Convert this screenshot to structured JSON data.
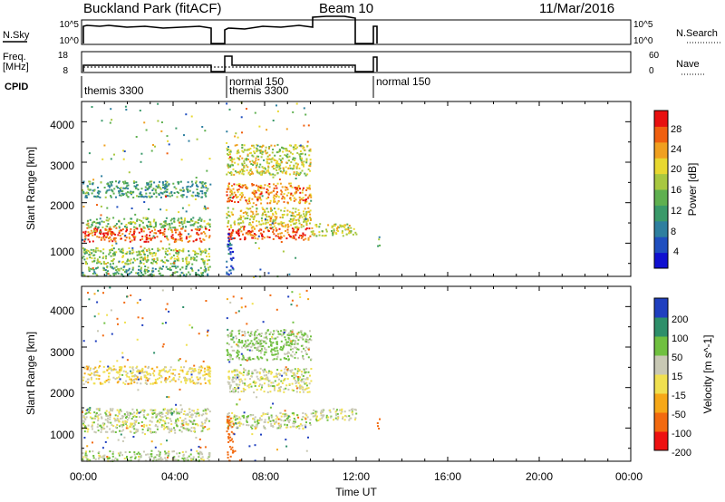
{
  "header": {
    "station": "Buckland Park (fitACF)",
    "beam": "Beam 10",
    "date": "11/Mar/2016"
  },
  "top_panels": {
    "nsky_label": "N.Sky",
    "nsky_ticks": [
      "10^5",
      "10^0"
    ],
    "nsearch_label": "N.Search",
    "nsearch_ticks": [
      "10^5",
      "10^0"
    ],
    "freq_label": "Freq.",
    "freq_unit": "[MHz]",
    "freq_ticks": [
      "18",
      "8"
    ],
    "nave_label": "Nave",
    "nave_ticks": [
      "60",
      "0"
    ],
    "cpid_label": "CPID",
    "cpid_segments": [
      {
        "label": "themis 3300",
        "start_h": 0.0
      },
      {
        "label": "normal 150",
        "start_h": 6.4
      },
      {
        "label": "themis 3300",
        "start_h": 6.4
      },
      {
        "label": "normal 150",
        "start_h": 12.9
      }
    ]
  },
  "chart_data": [
    {
      "type": "heatmap",
      "quantity": "Power",
      "xlabel": "",
      "ylabel": "Slant Range [km]",
      "xlim": [
        0,
        24
      ],
      "ylim": [
        180,
        4500
      ],
      "yticks": [
        "1000",
        "2000",
        "3000",
        "4000"
      ],
      "colorbar": {
        "label": "Power [dB]",
        "ticks": [
          "4",
          "8",
          "12",
          "16",
          "20",
          "24",
          "28"
        ],
        "range": [
          0,
          30
        ]
      },
      "bands": [
        {
          "t0": 0.0,
          "t1": 5.6,
          "r0": 1050,
          "r1": 1400,
          "level": 26
        },
        {
          "t0": 0.0,
          "t1": 5.6,
          "r0": 1400,
          "r1": 1650,
          "level": 14
        },
        {
          "t0": 0.0,
          "t1": 5.6,
          "r0": 2150,
          "r1": 2550,
          "level": 11
        },
        {
          "t0": 0.0,
          "t1": 5.6,
          "r0": 200,
          "r1": 450,
          "level": 12
        },
        {
          "t0": 0.0,
          "t1": 5.6,
          "r0": 500,
          "r1": 900,
          "level": 16
        },
        {
          "t0": 6.3,
          "t1": 10.0,
          "r0": 1100,
          "r1": 1400,
          "level": 27
        },
        {
          "t0": 6.3,
          "t1": 10.0,
          "r0": 1400,
          "r1": 1900,
          "level": 19
        },
        {
          "t0": 6.3,
          "t1": 10.0,
          "r0": 2000,
          "r1": 2500,
          "level": 23
        },
        {
          "t0": 6.3,
          "t1": 10.0,
          "r0": 2700,
          "r1": 3450,
          "level": 18
        },
        {
          "t0": 6.3,
          "t1": 6.6,
          "r0": 200,
          "r1": 1300,
          "level": 5
        },
        {
          "t0": 10.0,
          "t1": 12.0,
          "r0": 1200,
          "r1": 1500,
          "level": 18
        },
        {
          "t0": 12.9,
          "t1": 13.0,
          "r0": 900,
          "r1": 1250,
          "level": 11
        }
      ]
    },
    {
      "type": "heatmap",
      "quantity": "Velocity",
      "xlabel": "Time UT",
      "ylabel": "Slant Range [km]",
      "xlim": [
        0,
        24
      ],
      "ylim": [
        180,
        4500
      ],
      "xticks": [
        "00:00",
        "04:00",
        "08:00",
        "12:00",
        "16:00",
        "20:00",
        "00:00"
      ],
      "yticks": [
        "1000",
        "2000",
        "3000",
        "4000"
      ],
      "colorbar": {
        "label": "Velocity [m s^-1]",
        "ticks": [
          "200",
          "100",
          "50",
          "15",
          "-15",
          "-50",
          "-100",
          "-200"
        ]
      },
      "bands": [
        {
          "t0": 0.0,
          "t1": 5.6,
          "r0": 900,
          "r1": 1500,
          "level": 0
        },
        {
          "t0": 0.0,
          "t1": 5.6,
          "r0": 2100,
          "r1": 2550,
          "level": -30
        },
        {
          "t0": 0.0,
          "t1": 5.6,
          "r0": 200,
          "r1": 450,
          "level": 10
        },
        {
          "t0": 6.3,
          "t1": 10.0,
          "r0": 1000,
          "r1": 1400,
          "level": 0
        },
        {
          "t0": 6.3,
          "t1": 10.0,
          "r0": 1900,
          "r1": 2500,
          "level": -5
        },
        {
          "t0": 6.3,
          "t1": 10.0,
          "r0": 2700,
          "r1": 3450,
          "level": 20
        },
        {
          "t0": 6.3,
          "t1": 6.6,
          "r0": 200,
          "r1": 1300,
          "level": -150
        },
        {
          "t0": 10.0,
          "t1": 12.0,
          "r0": 1200,
          "r1": 1500,
          "level": 0
        },
        {
          "t0": 12.9,
          "t1": 13.0,
          "r0": 900,
          "r1": 1250,
          "level": -120
        }
      ]
    }
  ],
  "colors": {
    "power_scale": [
      "#1010d0",
      "#1f4fbf",
      "#2e7f9f",
      "#3a9a6a",
      "#5fb050",
      "#a8c840",
      "#e8d830",
      "#f0a020",
      "#f06010",
      "#e81010"
    ],
    "velocity_scale": [
      "#ee1111",
      "#f26a10",
      "#f6a818",
      "#f0e050",
      "#c8c8b4",
      "#70c040",
      "#2e8f6a",
      "#1f3fbf"
    ]
  }
}
